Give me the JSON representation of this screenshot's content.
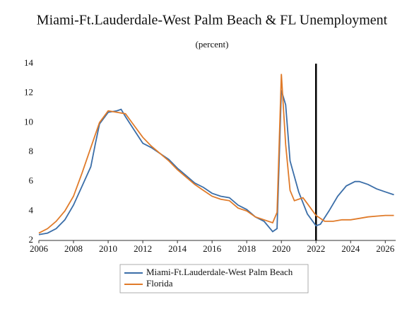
{
  "chart_data": {
    "type": "line",
    "title": "Miami-Ft.Lauderdale-West Palm Beach & FL Unemployment",
    "subtitle": "(percent)",
    "xlim": [
      2006,
      2026.6
    ],
    "xticks": [
      2006,
      2008,
      2010,
      2012,
      2014,
      2016,
      2018,
      2020,
      2022,
      2024,
      2026
    ],
    "ylim": [
      2,
      14
    ],
    "yticks": [
      2,
      4,
      6,
      8,
      10,
      12,
      14
    ],
    "vline": 2022,
    "series": [
      {
        "name": "Miami-Ft.Lauderdale-West Palm Beach",
        "color": "#3b6ea8",
        "x": [
          2006,
          2006.5,
          2007,
          2007.5,
          2008,
          2008.5,
          2009,
          2009.25,
          2009.5,
          2010,
          2010.5,
          2010.75,
          2011,
          2011.5,
          2012,
          2012.5,
          2013,
          2013.5,
          2014,
          2014.5,
          2015,
          2015.5,
          2016,
          2016.5,
          2017,
          2017.5,
          2018,
          2018.5,
          2019,
          2019.5,
          2019.75,
          2020,
          2020.25,
          2020.5,
          2021,
          2021.5,
          2022,
          2022.25,
          2022.75,
          2023.25,
          2023.75,
          2024.25,
          2024.5,
          2025,
          2025.5,
          2026,
          2026.5
        ],
        "values": [
          2.4,
          2.5,
          2.8,
          3.4,
          4.4,
          5.7,
          7.0,
          8.5,
          9.9,
          10.7,
          10.8,
          10.9,
          10.4,
          9.5,
          8.6,
          8.3,
          7.9,
          7.5,
          6.9,
          6.4,
          5.9,
          5.6,
          5.2,
          5.0,
          4.9,
          4.4,
          4.1,
          3.6,
          3.3,
          2.6,
          2.8,
          12.2,
          11.2,
          7.4,
          5.3,
          3.8,
          3.0,
          3.1,
          4.0,
          5.0,
          5.7,
          6.0,
          6.0,
          5.8,
          5.5,
          5.3,
          5.1
        ]
      },
      {
        "name": "Florida",
        "color": "#e07b2a",
        "x": [
          2006,
          2006.5,
          2007,
          2007.5,
          2008,
          2008.5,
          2009,
          2009.5,
          2010,
          2010.5,
          2011,
          2011.5,
          2012,
          2012.5,
          2013,
          2013.5,
          2014,
          2014.5,
          2015,
          2015.5,
          2016,
          2016.5,
          2017,
          2017.5,
          2018,
          2018.5,
          2019,
          2019.5,
          2019.75,
          2020,
          2020.25,
          2020.5,
          2020.75,
          2021.25,
          2021.5,
          2022,
          2022.5,
          2023,
          2023.5,
          2024,
          2024.5,
          2025,
          2025.5,
          2026,
          2026.5
        ],
        "values": [
          2.5,
          2.8,
          3.3,
          4.0,
          5.0,
          6.6,
          8.3,
          10.0,
          10.8,
          10.7,
          10.6,
          9.8,
          9.0,
          8.4,
          7.9,
          7.4,
          6.8,
          6.3,
          5.8,
          5.4,
          5.0,
          4.8,
          4.7,
          4.2,
          4.0,
          3.6,
          3.4,
          3.2,
          3.9,
          13.3,
          8.5,
          5.4,
          4.7,
          4.9,
          4.5,
          3.7,
          3.3,
          3.3,
          3.4,
          3.4,
          3.5,
          3.6,
          3.65,
          3.7,
          3.7
        ]
      }
    ]
  }
}
